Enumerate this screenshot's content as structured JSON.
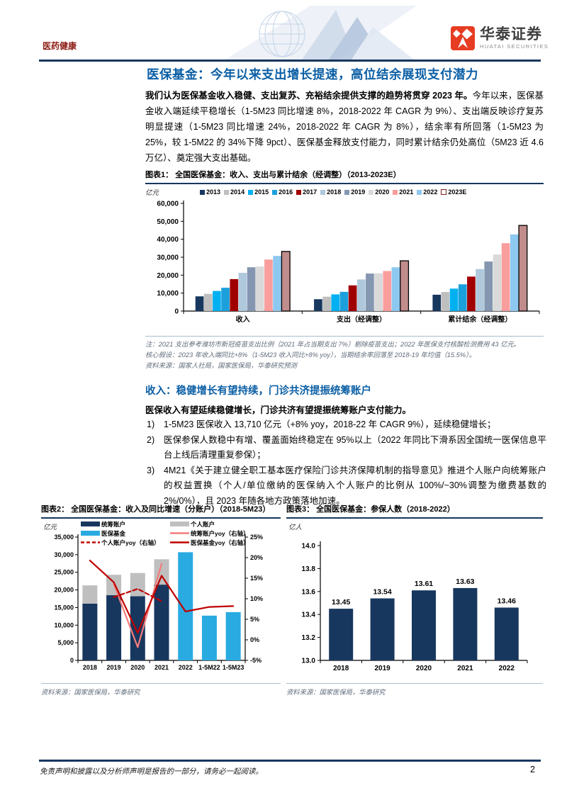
{
  "header": {
    "category": "医药健康",
    "brand_cn": "华泰证券",
    "brand_en": "HUATAI SECURITIES"
  },
  "title": "医保基金：今年以来支出增长提速，高位结余展现支付潜力",
  "intro": {
    "bold": "我们认为医保基金收入稳健、支出复苏、充裕结余提供支撑的趋势将贯穿 2023 年。",
    "rest": "今年以来，医保基金收入端延续平稳增长（1-5M23 同比增速 8%，2018-2022 年 CAGR 为 9%）、支出端反映诊疗复苏明显提速（1-5M23 同比增速 24%，2018-2022 年 CAGR 为 8%），结余率有所回落（1-5M23 为 25%，较 1-5M22 的 34%下降 9pct）、医保基金释放支付能力，同时累计结余仍处高位（5M23 近 4.6 万亿）、奠定强大支出基础。"
  },
  "section": {
    "title": "收入：稳健增长有望持续，门诊共济提振统筹账户",
    "lead": "医保收入有望延续稳健增长，门诊共济有望提振统筹账户支付能力。",
    "items": [
      {
        "num": "1)",
        "text": "1-5M23 医保收入 13,710 亿元（+8% yoy，2018-22 年 CAGR 9%），延续稳健增长；"
      },
      {
        "num": "2)",
        "text": "医保参保人数稳中有增、覆盖面始终稳定在 95%以上（2022 年同比下滑系因全国统一医保信息平台上线后清理重复参保）；"
      },
      {
        "num": "3)",
        "text": "4M21《关于建立健全职工基本医疗保险门诊共济保障机制的指导意见》推进个人账户向统筹账户的权益置换（个人/单位缴纳的医保纳入个人账户的比例从 100%/~30%调整为缴费基数的 2%/0%），且 2023 年随各地方政策落地加速。"
      }
    ]
  },
  "footer": {
    "disclaimer": "免责声明和披露以及分析师声明是报告的一部分，请务必一起阅读。",
    "page": "2"
  },
  "palette": {
    "title_blue": "#0B5FA5",
    "rule_navy": "#17375E",
    "category_red": "#8D1B13",
    "brand_red": "#E63C22",
    "note_gray": "#5F6B7A",
    "dark_red": "#C00000",
    "pink_line": "#F47C7C"
  },
  "chart_data": [
    {
      "id": "figure1",
      "type": "bar",
      "full_title": "图表1： 全国医保基金：收入、支出与累计结余（经调整）（2013-2023E）",
      "title": "全国医保基金：收入、支出与累计结余（经调整）（2013-2023E）",
      "unit": "亿元",
      "groups": [
        "收入",
        "支出（经调整）",
        "累计结余（经调整）"
      ],
      "series": [
        {
          "name": "2013",
          "color": "#17375E",
          "values": [
            8200,
            6600,
            9100
          ]
        },
        {
          "name": "2014",
          "color": "#BFBFBF",
          "values": [
            9600,
            8000,
            10600
          ]
        },
        {
          "name": "2015",
          "color": "#00B0F0",
          "values": [
            11200,
            9300,
            12500
          ]
        },
        {
          "name": "2016",
          "color": "#1BA0DC",
          "values": [
            13000,
            10700,
            14900
          ]
        },
        {
          "name": "2017",
          "color": "#A00000",
          "values": [
            17800,
            14300,
            19200
          ]
        },
        {
          "name": "2018",
          "color": "#AFC8DC",
          "values": [
            21300,
            17600,
            23400
          ]
        },
        {
          "name": "2019",
          "color": "#8496B0",
          "values": [
            24400,
            20900,
            27600
          ]
        },
        {
          "name": "2020",
          "color": "#D9D9D9",
          "values": [
            24800,
            21000,
            31500
          ]
        },
        {
          "name": "2021",
          "color": "#FA9D9D",
          "values": [
            28700,
            22300,
            37800
          ]
        },
        {
          "name": "2022",
          "color": "#8DC8F0",
          "values": [
            30700,
            24400,
            42700
          ]
        },
        {
          "name": "2023E",
          "color": "#C08C8C",
          "stroke": "#000000",
          "values": [
            33200,
            28000,
            47700
          ]
        }
      ],
      "ylim": [
        0,
        60000
      ],
      "ystep": 10000,
      "legend_position": "top",
      "notes": [
        "注：2021 支出参考潍坊市新冠疫苗支出比例（2021 年占当期支出 7%）剔除疫苗支出；2022 年医保支付核酸检测费用 43 亿元。",
        "核心假设：2023 年收入端同比+8%（1-5M23 收入同比+8% yoy），当期结余率回落至 2018-19 年均值（15.5%）。"
      ],
      "source": "资料来源：国家人社局，国家医保局，华泰研究预测"
    },
    {
      "id": "figure2",
      "type": "combo",
      "full_title": "图表2： 全国医保基金：收入及同比增速（分账户）（2018-5M23）",
      "title": "全国医保基金：收入及同比增速（分账户）（2018-5M23）",
      "unit": "亿元",
      "categories": [
        "2018",
        "2019",
        "2020",
        "2021",
        "2022",
        "1-5M22",
        "1-5M23"
      ],
      "bar_series": [
        {
          "name": "统筹账户",
          "color": "#17375E",
          "values": [
            16100,
            18500,
            18200,
            21500,
            null,
            null,
            null
          ]
        },
        {
          "name": "个人账户",
          "color": "#BFBFBF",
          "stack_on": "统筹账户",
          "values": [
            5200,
            5800,
            6600,
            7200,
            null,
            null,
            null
          ]
        },
        {
          "name": "医保基金",
          "color": "#29ABE2",
          "values": [
            null,
            null,
            null,
            null,
            30700,
            12700,
            13700
          ]
        }
      ],
      "line_series": [
        {
          "name": "统筹账户yoy（右轴）",
          "color": "#F47C7C",
          "dash": false,
          "values": [
            null,
            13.6,
            -1.8,
            18.5,
            null,
            null,
            null
          ]
        },
        {
          "name": "个人账户yoy（右轴）",
          "color": "#C00000",
          "dash": true,
          "values": [
            null,
            10.4,
            12.4,
            9.4,
            null,
            null,
            null
          ]
        },
        {
          "name": "医保基金yoy（右轴）",
          "color": "#C00000",
          "dash": false,
          "values": [
            19.3,
            14.0,
            1.7,
            15.6,
            6.9,
            8.0,
            8.2
          ]
        }
      ],
      "ylim": [
        0,
        35000
      ],
      "ystep": 5000,
      "y2lim": [
        -5,
        25
      ],
      "y2step": 5,
      "y2suffix": "%",
      "legend_position": "top",
      "source": "资料来源：国家医保局，华泰研究"
    },
    {
      "id": "figure3",
      "type": "bar",
      "full_title": "图表3： 全国医保基金：参保人数（2018-2022）",
      "title": "全国医保基金：参保人数（2018-2022）",
      "unit": "亿人",
      "categories": [
        "2018",
        "2019",
        "2020",
        "2021",
        "2022"
      ],
      "values": [
        13.45,
        13.54,
        13.61,
        13.63,
        13.46
      ],
      "color": "#17375E",
      "ylim": [
        13.0,
        14.0
      ],
      "ystep": 0.2,
      "source": "资料来源：国家医保局，华泰研究"
    }
  ]
}
